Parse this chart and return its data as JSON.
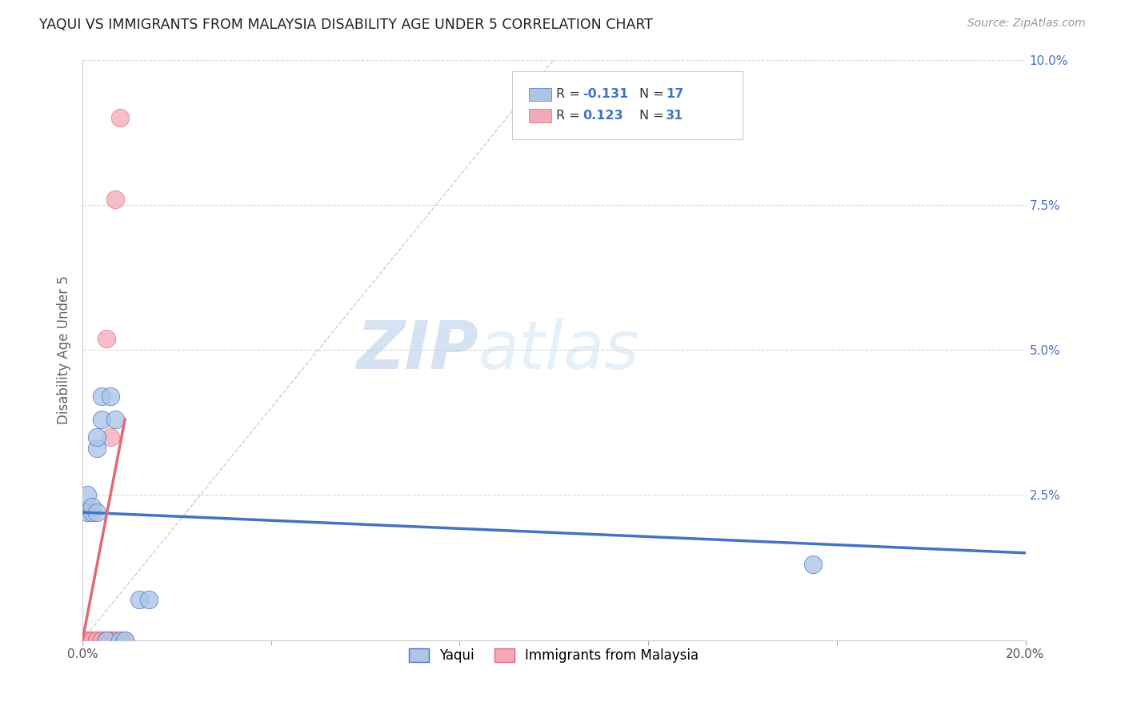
{
  "title": "YAQUI VS IMMIGRANTS FROM MALAYSIA DISABILITY AGE UNDER 5 CORRELATION CHART",
  "source": "Source: ZipAtlas.com",
  "ylabel": "Disability Age Under 5",
  "watermark_zip": "ZIP",
  "watermark_atlas": "atlas",
  "xlim": [
    0.0,
    0.2
  ],
  "ylim": [
    0.0,
    0.1
  ],
  "yticks_right": [
    0.0,
    0.025,
    0.05,
    0.075,
    0.1
  ],
  "ytick_labels_right": [
    "",
    "2.5%",
    "5.0%",
    "7.5%",
    "10.0%"
  ],
  "legend_r_blue": "-0.131",
  "legend_n_blue": "17",
  "legend_r_pink": "0.123",
  "legend_n_pink": "31",
  "yaqui_x": [
    0.001,
    0.001,
    0.002,
    0.002,
    0.003,
    0.003,
    0.003,
    0.004,
    0.004,
    0.005,
    0.006,
    0.007,
    0.008,
    0.009,
    0.012,
    0.014,
    0.155
  ],
  "yaqui_y": [
    0.022,
    0.025,
    0.022,
    0.023,
    0.033,
    0.035,
    0.022,
    0.042,
    0.038,
    0.0,
    0.042,
    0.038,
    0.0,
    0.0,
    0.007,
    0.007,
    0.013
  ],
  "malaysia_x": [
    0.0005,
    0.001,
    0.001,
    0.001,
    0.002,
    0.002,
    0.002,
    0.003,
    0.003,
    0.003,
    0.003,
    0.004,
    0.004,
    0.004,
    0.004,
    0.005,
    0.005,
    0.005,
    0.005,
    0.005,
    0.006,
    0.006,
    0.006,
    0.006,
    0.007,
    0.007,
    0.007,
    0.007,
    0.008,
    0.008,
    0.009
  ],
  "malaysia_y": [
    0.0,
    0.0,
    0.0,
    0.0,
    0.0,
    0.0,
    0.0,
    0.0,
    0.0,
    0.0,
    0.0,
    0.0,
    0.0,
    0.0,
    0.0,
    0.052,
    0.0,
    0.0,
    0.0,
    0.0,
    0.035,
    0.0,
    0.0,
    0.0,
    0.076,
    0.0,
    0.0,
    0.0,
    0.09,
    0.0,
    0.0
  ],
  "blue_color": "#adc6e8",
  "pink_color": "#f4a8b8",
  "blue_line_color": "#4472c4",
  "pink_line_color": "#e06878",
  "diag_color": "#d0d0d0",
  "grid_color": "#d8d8d8",
  "text_blue": "#4472c4",
  "text_dark": "#333333",
  "blue_line_y0": 0.022,
  "blue_line_y1": 0.015,
  "pink_line_x0": 0.0,
  "pink_line_y0": 0.0,
  "pink_line_x1": 0.009,
  "pink_line_y1": 0.038
}
